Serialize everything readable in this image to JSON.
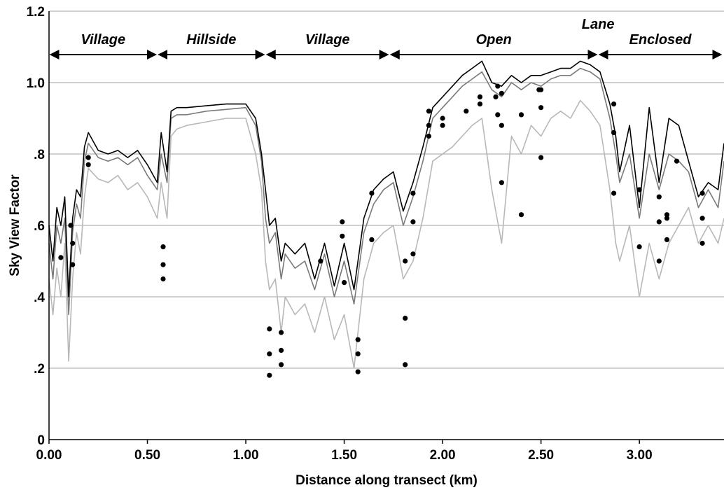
{
  "chart_data": {
    "type": "line",
    "xlabel": "Distance along transect (km)",
    "ylabel": "Sky View Factor",
    "xlim": [
      0,
      3.43
    ],
    "ylim": [
      0,
      1.2
    ],
    "x_ticks": [
      {
        "value": 0,
        "label": "0.00"
      },
      {
        "value": 0.5,
        "label": "0.50"
      },
      {
        "value": 1.0,
        "label": "1.00"
      },
      {
        "value": 1.5,
        "label": "1.50"
      },
      {
        "value": 2.0,
        "label": "2.00"
      },
      {
        "value": 2.5,
        "label": "2.50"
      },
      {
        "value": 3.0,
        "label": "3.00"
      }
    ],
    "y_ticks": [
      {
        "value": 0,
        "label": "0"
      },
      {
        "value": 0.2,
        "label": ".2"
      },
      {
        "value": 0.4,
        "label": ".4"
      },
      {
        "value": 0.6,
        "label": ".6"
      },
      {
        "value": 0.8,
        "label": ".8"
      },
      {
        "value": 1.0,
        "label": "1.0"
      },
      {
        "value": 1.2,
        "label": "1.2"
      }
    ],
    "grid": true,
    "regions": [
      {
        "label": "Village",
        "start": 0.0,
        "end": 0.55
      },
      {
        "label": "Hillside",
        "start": 0.55,
        "end": 1.1
      },
      {
        "label": "Village",
        "start": 1.1,
        "end": 1.73
      },
      {
        "label": "Open",
        "start": 1.73,
        "end": 2.79
      },
      {
        "label": "Lane",
        "at": 2.79
      },
      {
        "label": "Enclosed",
        "start": 2.79,
        "end": 3.43
      }
    ],
    "series": [
      {
        "color": "#b8b8b8",
        "role": "lower-envelope",
        "x": [
          0.0,
          0.02,
          0.04,
          0.06,
          0.08,
          0.1,
          0.12,
          0.14,
          0.16,
          0.18,
          0.2,
          0.25,
          0.3,
          0.35,
          0.4,
          0.45,
          0.5,
          0.55,
          0.57,
          0.6,
          0.62,
          0.65,
          0.7,
          0.8,
          0.9,
          1.0,
          1.05,
          1.08,
          1.1,
          1.12,
          1.15,
          1.18,
          1.2,
          1.25,
          1.3,
          1.35,
          1.4,
          1.45,
          1.5,
          1.55,
          1.6,
          1.65,
          1.7,
          1.75,
          1.8,
          1.85,
          1.9,
          1.95,
          2.0,
          2.05,
          2.1,
          2.15,
          2.2,
          2.25,
          2.3,
          2.35,
          2.4,
          2.45,
          2.5,
          2.55,
          2.6,
          2.65,
          2.7,
          2.75,
          2.8,
          2.85,
          2.88,
          2.9,
          2.95,
          3.0,
          3.05,
          3.1,
          3.15,
          3.2,
          3.25,
          3.3,
          3.35,
          3.4,
          3.43
        ],
        "y": [
          0.45,
          0.35,
          0.48,
          0.4,
          0.55,
          0.22,
          0.45,
          0.58,
          0.52,
          0.68,
          0.76,
          0.73,
          0.72,
          0.74,
          0.7,
          0.72,
          0.68,
          0.62,
          0.72,
          0.62,
          0.85,
          0.87,
          0.88,
          0.89,
          0.9,
          0.9,
          0.8,
          0.7,
          0.5,
          0.42,
          0.45,
          0.3,
          0.4,
          0.35,
          0.38,
          0.3,
          0.4,
          0.28,
          0.35,
          0.2,
          0.45,
          0.55,
          0.58,
          0.6,
          0.45,
          0.5,
          0.62,
          0.78,
          0.8,
          0.82,
          0.85,
          0.88,
          0.9,
          0.7,
          0.55,
          0.85,
          0.8,
          0.88,
          0.85,
          0.9,
          0.92,
          0.9,
          0.95,
          0.92,
          0.88,
          0.7,
          0.55,
          0.5,
          0.6,
          0.4,
          0.55,
          0.45,
          0.55,
          0.6,
          0.65,
          0.55,
          0.6,
          0.55,
          0.62
        ]
      },
      {
        "color": "#7a7a7a",
        "role": "middle",
        "x": [
          0.0,
          0.02,
          0.04,
          0.06,
          0.08,
          0.1,
          0.12,
          0.14,
          0.16,
          0.18,
          0.2,
          0.25,
          0.3,
          0.35,
          0.4,
          0.45,
          0.5,
          0.55,
          0.57,
          0.6,
          0.62,
          0.65,
          0.7,
          0.8,
          0.9,
          1.0,
          1.05,
          1.08,
          1.1,
          1.12,
          1.15,
          1.18,
          1.2,
          1.25,
          1.3,
          1.35,
          1.4,
          1.45,
          1.5,
          1.55,
          1.6,
          1.65,
          1.7,
          1.75,
          1.8,
          1.85,
          1.9,
          1.95,
          2.0,
          2.05,
          2.1,
          2.15,
          2.2,
          2.25,
          2.3,
          2.35,
          2.4,
          2.45,
          2.5,
          2.55,
          2.6,
          2.65,
          2.7,
          2.75,
          2.8,
          2.85,
          2.88,
          2.9,
          2.95,
          3.0,
          3.05,
          3.1,
          3.15,
          3.2,
          3.25,
          3.3,
          3.35,
          3.4,
          3.43
        ],
        "y": [
          0.55,
          0.45,
          0.6,
          0.55,
          0.62,
          0.35,
          0.58,
          0.66,
          0.62,
          0.78,
          0.83,
          0.79,
          0.78,
          0.79,
          0.77,
          0.79,
          0.74,
          0.7,
          0.8,
          0.72,
          0.9,
          0.91,
          0.91,
          0.92,
          0.925,
          0.93,
          0.88,
          0.78,
          0.62,
          0.55,
          0.58,
          0.45,
          0.52,
          0.48,
          0.5,
          0.42,
          0.52,
          0.4,
          0.5,
          0.38,
          0.58,
          0.66,
          0.7,
          0.72,
          0.6,
          0.68,
          0.78,
          0.9,
          0.93,
          0.96,
          0.99,
          1.01,
          1.03,
          0.98,
          0.96,
          1.0,
          0.98,
          1.0,
          0.99,
          1.01,
          1.02,
          1.02,
          1.04,
          1.03,
          1.01,
          0.9,
          0.8,
          0.72,
          0.8,
          0.62,
          0.8,
          0.7,
          0.8,
          0.78,
          0.75,
          0.65,
          0.7,
          0.65,
          0.78
        ]
      },
      {
        "color": "#000000",
        "role": "upper",
        "x": [
          0.0,
          0.02,
          0.04,
          0.06,
          0.08,
          0.1,
          0.12,
          0.14,
          0.16,
          0.18,
          0.2,
          0.25,
          0.3,
          0.35,
          0.4,
          0.45,
          0.5,
          0.55,
          0.57,
          0.6,
          0.62,
          0.65,
          0.7,
          0.8,
          0.9,
          1.0,
          1.05,
          1.08,
          1.1,
          1.12,
          1.15,
          1.18,
          1.2,
          1.25,
          1.3,
          1.35,
          1.4,
          1.45,
          1.5,
          1.55,
          1.6,
          1.65,
          1.7,
          1.75,
          1.8,
          1.85,
          1.9,
          1.95,
          2.0,
          2.05,
          2.1,
          2.15,
          2.2,
          2.25,
          2.3,
          2.35,
          2.4,
          2.45,
          2.5,
          2.55,
          2.6,
          2.65,
          2.7,
          2.75,
          2.8,
          2.85,
          2.88,
          2.9,
          2.95,
          3.0,
          3.05,
          3.1,
          3.15,
          3.2,
          3.25,
          3.3,
          3.35,
          3.4,
          3.43
        ],
        "y": [
          0.6,
          0.5,
          0.65,
          0.6,
          0.68,
          0.4,
          0.62,
          0.7,
          0.68,
          0.82,
          0.86,
          0.81,
          0.8,
          0.81,
          0.79,
          0.81,
          0.77,
          0.72,
          0.86,
          0.75,
          0.92,
          0.93,
          0.93,
          0.935,
          0.94,
          0.94,
          0.9,
          0.8,
          0.7,
          0.6,
          0.62,
          0.5,
          0.55,
          0.52,
          0.55,
          0.45,
          0.55,
          0.43,
          0.55,
          0.42,
          0.62,
          0.7,
          0.73,
          0.75,
          0.64,
          0.72,
          0.82,
          0.93,
          0.96,
          0.99,
          1.02,
          1.04,
          1.06,
          1.0,
          0.99,
          1.02,
          1.0,
          1.02,
          1.02,
          1.03,
          1.04,
          1.04,
          1.06,
          1.05,
          1.03,
          0.94,
          0.85,
          0.75,
          0.88,
          0.65,
          0.93,
          0.72,
          0.9,
          0.88,
          0.78,
          0.68,
          0.72,
          0.7,
          0.83
        ]
      }
    ],
    "points": {
      "color": "#000000",
      "x": [
        0.06,
        0.11,
        0.12,
        0.12,
        0.2,
        0.2,
        0.58,
        0.58,
        0.58,
        1.12,
        1.12,
        1.12,
        1.18,
        1.18,
        1.18,
        1.38,
        1.49,
        1.49,
        1.5,
        1.57,
        1.57,
        1.57,
        1.64,
        1.64,
        1.81,
        1.81,
        1.81,
        1.85,
        1.85,
        1.85,
        1.93,
        1.93,
        1.93,
        2.0,
        2.0,
        2.12,
        2.19,
        2.19,
        2.27,
        2.28,
        2.28,
        2.3,
        2.3,
        2.3,
        2.4,
        2.4,
        2.49,
        2.5,
        2.5,
        2.5,
        2.87,
        2.87,
        2.87,
        3.0,
        3.0,
        3.0,
        3.1,
        3.1,
        3.1,
        3.14,
        3.14,
        3.14,
        3.19,
        3.32,
        3.32,
        3.32
      ],
      "y": [
        0.51,
        0.6,
        0.55,
        0.49,
        0.79,
        0.77,
        0.54,
        0.49,
        0.45,
        0.31,
        0.24,
        0.18,
        0.3,
        0.25,
        0.21,
        0.5,
        0.61,
        0.57,
        0.44,
        0.28,
        0.24,
        0.19,
        0.69,
        0.56,
        0.5,
        0.34,
        0.21,
        0.69,
        0.61,
        0.52,
        0.92,
        0.88,
        0.85,
        0.9,
        0.88,
        0.92,
        0.96,
        0.94,
        0.96,
        0.99,
        0.91,
        0.97,
        0.88,
        0.72,
        0.91,
        0.63,
        0.98,
        0.98,
        0.93,
        0.79,
        0.94,
        0.86,
        0.69,
        0.7,
        0.54,
        0.7,
        0.68,
        0.61,
        0.5,
        0.63,
        0.62,
        0.56,
        0.78,
        0.69,
        0.62,
        0.55
      ]
    }
  }
}
